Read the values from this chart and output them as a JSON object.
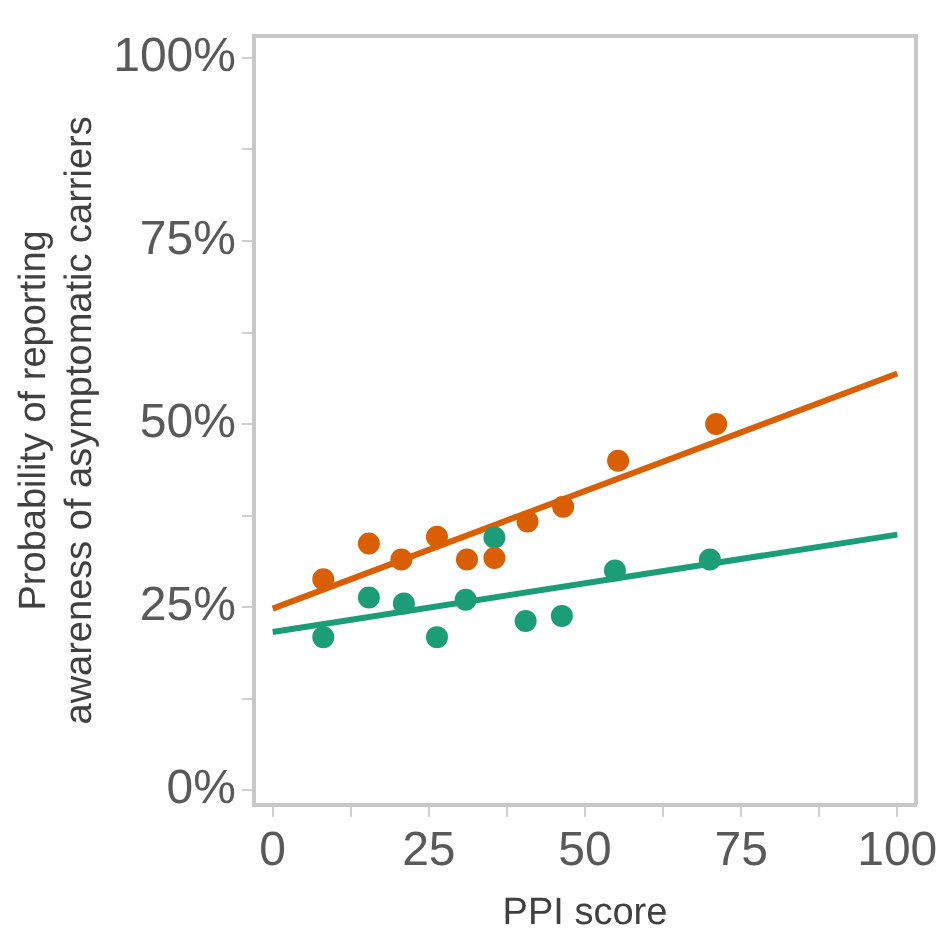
{
  "chart_data": {
    "type": "scatter",
    "xlabel": "PPI score",
    "ylabel": "Probability of reporting\nawareness of asymptomatic carriers",
    "xlim": [
      -3,
      103
    ],
    "ylim": [
      -2,
      103
    ],
    "xticks": [
      0,
      {
        "value": 12.5,
        "label": null
      },
      25,
      {
        "value": 37.5,
        "label": null
      },
      50,
      {
        "value": 62.5,
        "label": null
      },
      75,
      {
        "value": 87.5,
        "label": null
      },
      100
    ],
    "yticks": [
      {
        "value": 0,
        "label": "0%"
      },
      {
        "value": 12.5,
        "label": null
      },
      {
        "value": 25,
        "label": "25%"
      },
      {
        "value": 37.5,
        "label": null
      },
      {
        "value": 50,
        "label": "50%"
      },
      {
        "value": 62.5,
        "label": null
      },
      {
        "value": 75,
        "label": "75%"
      },
      {
        "value": 87.5,
        "label": null
      },
      {
        "value": 100,
        "label": "100%"
      }
    ],
    "grid": false,
    "legend": false,
    "marker": "circle",
    "series": [
      {
        "type": "scatter",
        "color": "#d95f02",
        "x": [
          8.1,
          15.4,
          20.6,
          26.3,
          31.1,
          35.5,
          40.8,
          46.5,
          55.3,
          71
        ],
        "values": [
          28.8,
          33.7,
          31.5,
          34.6,
          31.5,
          31.7,
          36.7,
          38.7,
          45,
          50
        ]
      },
      {
        "type": "scatter",
        "color": "#1b9e77",
        "x": [
          8.1,
          15.4,
          21,
          26.3,
          30.9,
          35.5,
          40.5,
          46.3,
          54.8,
          70
        ],
        "values": [
          20.9,
          26.3,
          25.5,
          20.9,
          26,
          34.5,
          23.1,
          23.8,
          30,
          31.5
        ]
      },
      {
        "type": "line",
        "color": "#d95f02",
        "marker": "none",
        "x": [
          0,
          100
        ],
        "values": [
          24.8,
          56.9
        ]
      },
      {
        "type": "line",
        "color": "#1b9e77",
        "marker": "none",
        "x": [
          0,
          100
        ],
        "values": [
          21.6,
          34.9
        ]
      }
    ]
  }
}
